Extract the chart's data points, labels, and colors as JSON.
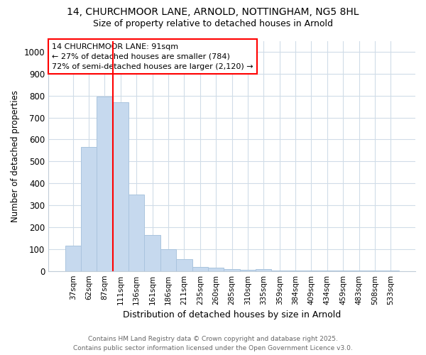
{
  "title_line1": "14, CHURCHMOOR LANE, ARNOLD, NOTTINGHAM, NG5 8HL",
  "title_line2": "Size of property relative to detached houses in Arnold",
  "xlabel": "Distribution of detached houses by size in Arnold",
  "ylabel": "Number of detached properties",
  "categories": [
    "37sqm",
    "62sqm",
    "87sqm",
    "111sqm",
    "136sqm",
    "161sqm",
    "186sqm",
    "211sqm",
    "235sqm",
    "260sqm",
    "285sqm",
    "310sqm",
    "335sqm",
    "359sqm",
    "384sqm",
    "409sqm",
    "434sqm",
    "459sqm",
    "483sqm",
    "508sqm",
    "533sqm"
  ],
  "values": [
    115,
    565,
    795,
    770,
    350,
    165,
    100,
    55,
    20,
    15,
    8,
    5,
    8,
    2,
    1,
    2,
    1,
    1,
    2,
    1,
    1
  ],
  "bar_color": "#c6d9ee",
  "bar_edge_color": "#aac4de",
  "ylim": [
    0,
    1050
  ],
  "yticks": [
    0,
    100,
    200,
    300,
    400,
    500,
    600,
    700,
    800,
    900,
    1000
  ],
  "red_line_x": 2.5,
  "annotation_text": "14 CHURCHMOOR LANE: 91sqm\n← 27% of detached houses are smaller (784)\n72% of semi-detached houses are larger (2,120) →",
  "footer_line1": "Contains HM Land Registry data © Crown copyright and database right 2025.",
  "footer_line2": "Contains public sector information licensed under the Open Government Licence v3.0.",
  "background_color": "#ffffff",
  "grid_color": "#d0dce8"
}
